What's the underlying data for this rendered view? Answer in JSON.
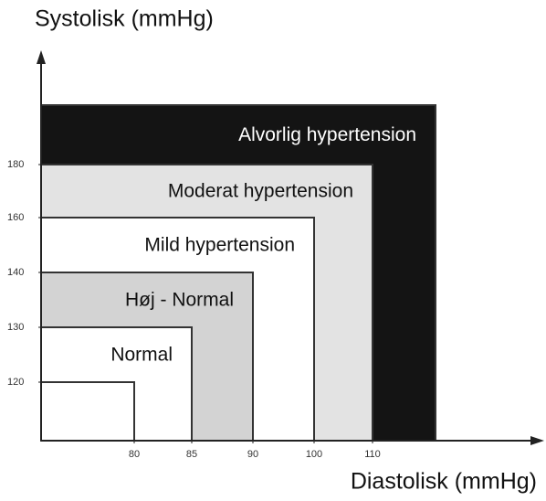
{
  "chart_data": {
    "type": "nested-regions",
    "y_label": "Systolisk (mmHg)",
    "x_label": "Diastolisk (mmHg)",
    "xticks": [
      80,
      85,
      90,
      100,
      110
    ],
    "yticks": [
      120,
      130,
      140,
      160,
      180
    ],
    "regions": [
      {
        "name": "Alvorlig hypertension",
        "x": null,
        "y": null,
        "color": "#141414"
      },
      {
        "name": "Moderat hypertension",
        "x": 110,
        "y": 180,
        "color": "#e3e3e3"
      },
      {
        "name": "Mild hypertension",
        "x": 100,
        "y": 160,
        "color": "#ffffff"
      },
      {
        "name": "Høj - Normal",
        "x": 90,
        "y": 140,
        "color": "#d3d3d3"
      },
      {
        "name": "Normal",
        "x": 85,
        "y": 130,
        "color": "#ffffff"
      },
      {
        "name": null,
        "x": 80,
        "y": 120,
        "color": "#ffffff"
      }
    ]
  }
}
